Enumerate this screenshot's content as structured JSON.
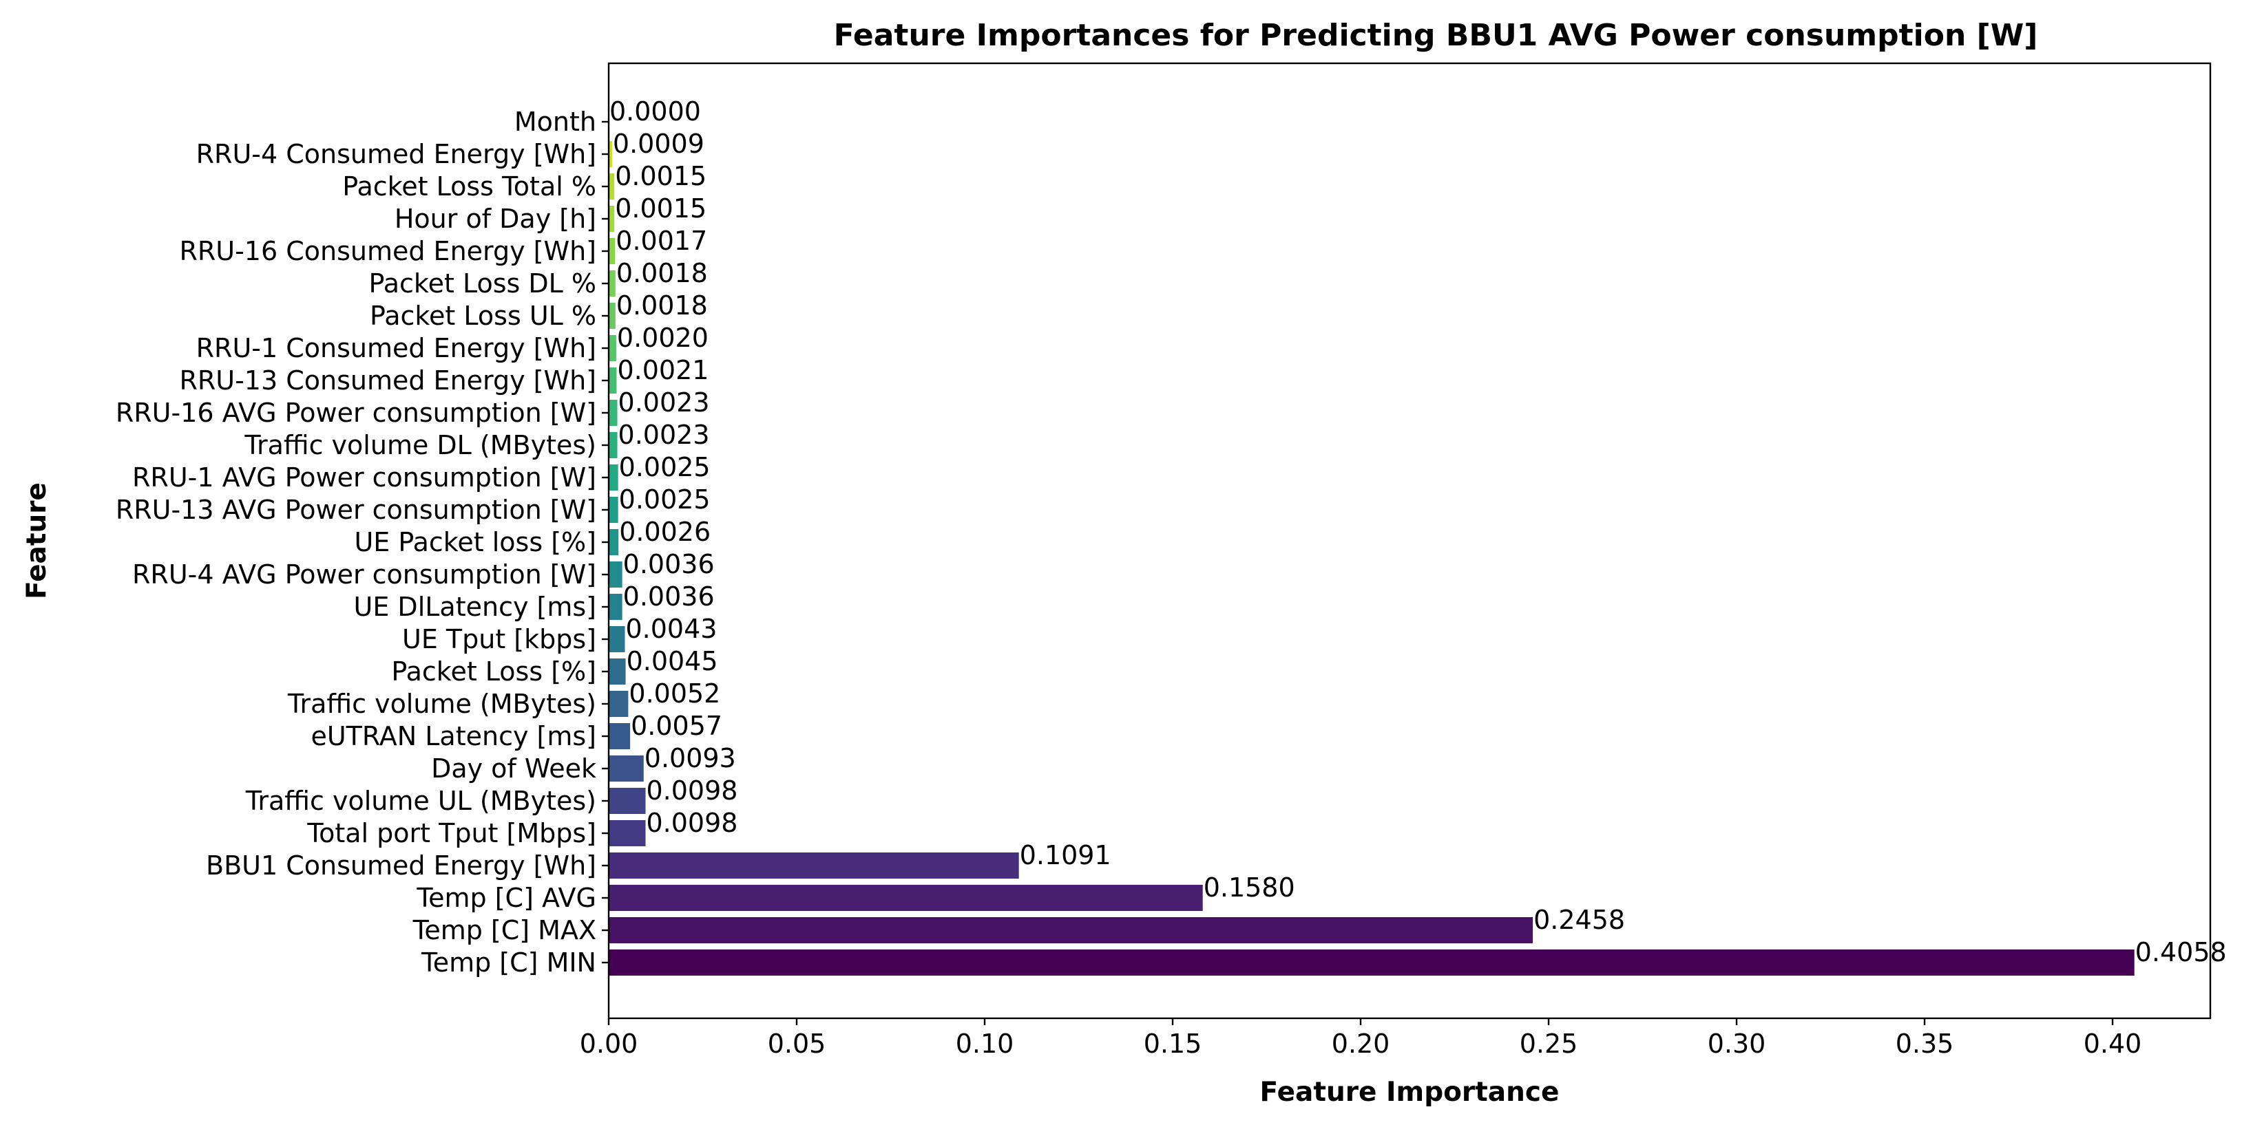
{
  "chart_data": {
    "type": "bar",
    "orientation": "horizontal",
    "title": "Feature Importances for Predicting BBU1 AVG Power consumption [W]",
    "xlabel": "Feature Importance",
    "ylabel": "Feature",
    "xlim": [
      0,
      0.426
    ],
    "xticks": [
      "0.00",
      "0.05",
      "0.10",
      "0.15",
      "0.20",
      "0.25",
      "0.30",
      "0.35",
      "0.40"
    ],
    "grid": false,
    "colormap": "viridis",
    "categories": [
      "Temp [C] MIN",
      "Temp [C] MAX",
      "Temp [C] AVG",
      "BBU1 Consumed Energy [Wh]",
      "Total port Tput [Mbps]",
      "Traffic volume UL  (MBytes)",
      "Day of Week",
      "eUTRAN Latency [ms]",
      "Traffic volume  (MBytes)",
      "Packet Loss [%]",
      "UE Tput [kbps]",
      "UE DlLatency [ms]",
      "RRU-4 AVG Power consumption [W]",
      "UE Packet loss [%]",
      "RRU-13 AVG Power consumption [W]",
      "RRU-1 AVG Power consumption [W]",
      "Traffic volume DL  (MBytes)",
      "RRU-16 AVG Power consumption [W]",
      "RRU-13   Consumed Energy [Wh]",
      "RRU-1 Consumed Energy [Wh]",
      "Packet Loss UL %",
      "Packet Loss DL %",
      "RRU-16 Consumed Energy [Wh]",
      "Hour of Day [h]",
      "Packet Loss Total %",
      "RRU-4 Consumed Energy [Wh]",
      "Month"
    ],
    "values": [
      0.4058,
      0.2458,
      0.158,
      0.1091,
      0.0098,
      0.0098,
      0.0093,
      0.0057,
      0.0052,
      0.0045,
      0.0043,
      0.0036,
      0.0036,
      0.0026,
      0.0025,
      0.0025,
      0.0023,
      0.0023,
      0.0021,
      0.002,
      0.0018,
      0.0018,
      0.0017,
      0.0015,
      0.0015,
      0.0009,
      0.0
    ],
    "value_labels": [
      "0.4058",
      "0.2458",
      "0.1580",
      "0.1091",
      "0.0098",
      "0.0098",
      "0.0093",
      "0.0057",
      "0.0052",
      "0.0045",
      "0.0043",
      "0.0036",
      "0.0036",
      "0.0026",
      "0.0025",
      "0.0025",
      "0.0023",
      "0.0023",
      "0.0021",
      "0.0020",
      "0.0018",
      "0.0018",
      "0.0017",
      "0.0015",
      "0.0015",
      "0.0009",
      "0.0000"
    ],
    "colors": [
      "#440154",
      "#471164",
      "#481f70",
      "#472d7b",
      "#443a83",
      "#414487",
      "#3b528b",
      "#375a8c",
      "#32648e",
      "#2e6d8e",
      "#2a788e",
      "#26818e",
      "#228b8d",
      "#1f958b",
      "#1f9e89",
      "#22a884",
      "#2ab07f",
      "#35b779",
      "#44bf70",
      "#54c568",
      "#65cb5e",
      "#75d054",
      "#8bd646",
      "#a2da37",
      "#b5de2b",
      "#cde11d",
      "#e2e418"
    ]
  }
}
